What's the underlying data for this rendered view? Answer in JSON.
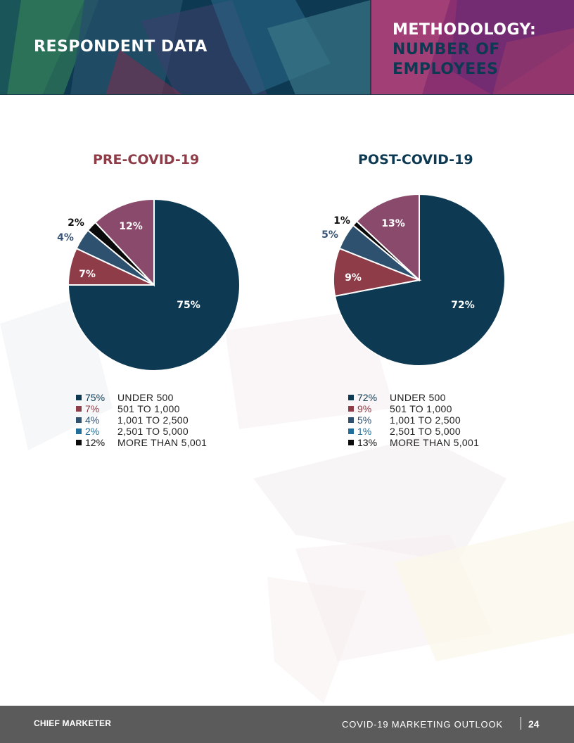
{
  "header": {
    "section_title": "RESPONDENT DATA",
    "methodology_label": "METHODOLOGY:",
    "methodology_topic_line1": "NUMBER OF",
    "methodology_topic_line2": "EMPLOYEES"
  },
  "chart_data": [
    {
      "type": "pie",
      "title": "PRE-COVID-19",
      "title_color": "#8e3c47",
      "slice_labels": [
        "75%",
        "7%",
        "4%",
        "2%",
        "12%"
      ],
      "values": [
        75,
        7,
        4,
        2,
        12
      ],
      "colors": [
        "#0d3a52",
        "#8e3c47",
        "#2f5170",
        "#0a0a0a",
        "#8a4a6c"
      ],
      "legend": [
        {
          "pct": "75%",
          "label": "UNDER 500",
          "color": "#0d3a52"
        },
        {
          "pct": "7%",
          "label": "501 TO 1,000",
          "color": "#8e3c47"
        },
        {
          "pct": "4%",
          "label": "1,001 TO 2,500",
          "color": "#2f5170"
        },
        {
          "pct": "2%",
          "label": "2,501 TO 5,000",
          "color": "#1f6d9a"
        },
        {
          "pct": "12%",
          "label": "MORE THAN 5,001",
          "color": "#0a0a0a"
        }
      ]
    },
    {
      "type": "pie",
      "title": "POST-COVID-19",
      "title_color": "#0d3a52",
      "slice_labels": [
        "72%",
        "9%",
        "5%",
        "1%",
        "13%"
      ],
      "values": [
        72,
        9,
        5,
        1,
        13
      ],
      "colors": [
        "#0d3a52",
        "#8e3c47",
        "#2f5170",
        "#0a0a0a",
        "#8a4a6c"
      ],
      "legend": [
        {
          "pct": "72%",
          "label": "UNDER 500",
          "color": "#0d3a52"
        },
        {
          "pct": "9%",
          "label": "501 TO 1,000",
          "color": "#8e3c47"
        },
        {
          "pct": "5%",
          "label": "1,001 TO 2,500",
          "color": "#2f5170"
        },
        {
          "pct": "1%",
          "label": "2,501 TO 5,000",
          "color": "#1f6d9a"
        },
        {
          "pct": "13%",
          "label": "MORE THAN 5,001",
          "color": "#0a0a0a"
        }
      ]
    }
  ],
  "footer": {
    "logo_text": "CHIEF MARKETER",
    "report_title": "COVID-19 MARKETING OUTLOOK",
    "page_number": "24"
  }
}
